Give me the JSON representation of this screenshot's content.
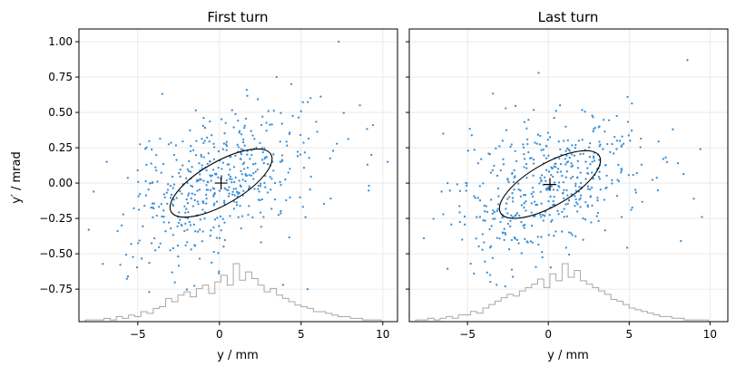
{
  "chart_data": {
    "type": "scatter",
    "ylabel": "y′ / mrad",
    "grid": true,
    "sharey": true,
    "ylim": [
      -0.98,
      1.09
    ],
    "yticks": [
      -0.75,
      -0.5,
      -0.25,
      0.0,
      0.25,
      0.5,
      0.75,
      1.0
    ],
    "ytick_labels": [
      "−0.75",
      "−0.50",
      "−0.25",
      "0.00",
      "0.25",
      "0.50",
      "0.75",
      "1.00"
    ],
    "colors": {
      "points": "#3a8fd6",
      "ellipse": "#000000",
      "histogram": "#a8a8a8",
      "grid": "#e6e6e6"
    },
    "panels": [
      {
        "title": "First turn",
        "xlabel": "y / mm",
        "xlim": [
          -8.6,
          10.9
        ],
        "xticks": [
          -5,
          0,
          5,
          10
        ],
        "xtick_labels": [
          "−5",
          "0",
          "5",
          "10"
        ],
        "center": {
          "x": 0.1,
          "y": 0.0
        },
        "ellipse": {
          "cx": 0.1,
          "cy": 0.0,
          "rx": 3.6,
          "ry": 0.22,
          "angle_deg": 30
        },
        "seed": 7,
        "point_count": 480,
        "points": [
          {
            "x": 7.3,
            "y": 1.0
          },
          {
            "x": 3.5,
            "y": 0.75
          },
          {
            "x": 4.4,
            "y": 0.7
          },
          {
            "x": -3.5,
            "y": 0.63
          },
          {
            "x": 8.6,
            "y": 0.55
          },
          {
            "x": 9.4,
            "y": 0.41
          },
          {
            "x": 9.3,
            "y": 0.2
          },
          {
            "x": 10.3,
            "y": 0.15
          },
          {
            "x": -7.7,
            "y": -0.06
          },
          {
            "x": -8.0,
            "y": -0.33
          },
          {
            "x": -5.6,
            "y": -0.66
          },
          {
            "x": -4.3,
            "y": -0.77
          },
          {
            "x": 5.4,
            "y": -0.75
          },
          {
            "x": 3.9,
            "y": -0.72
          },
          {
            "x": -6.9,
            "y": 0.15
          }
        ],
        "histogram": [
          1,
          1,
          1,
          2,
          1,
          3,
          2,
          4,
          3,
          6,
          5,
          8,
          9,
          14,
          12,
          16,
          18,
          15,
          20,
          22,
          17,
          24,
          28,
          22,
          35,
          25,
          30,
          26,
          22,
          18,
          20,
          16,
          14,
          12,
          10,
          9,
          8,
          6,
          6,
          5,
          4,
          3,
          3,
          2,
          2,
          1,
          1,
          1
        ]
      },
      {
        "title": "Last turn",
        "xlabel": "y / mm",
        "xlim": [
          -8.6,
          11.1
        ],
        "xticks": [
          -5,
          0,
          5,
          10
        ],
        "xtick_labels": [
          "−5",
          "0",
          "5",
          "10"
        ],
        "center": {
          "x": 0.1,
          "y": -0.01
        },
        "ellipse": {
          "cx": 0.1,
          "cy": -0.01,
          "rx": 3.6,
          "ry": 0.22,
          "angle_deg": 30
        },
        "seed": 19,
        "point_count": 470,
        "points": [
          {
            "x": 8.6,
            "y": 0.87
          },
          {
            "x": -0.6,
            "y": 0.78
          },
          {
            "x": 4.9,
            "y": 0.61
          },
          {
            "x": 7.7,
            "y": 0.38
          },
          {
            "x": 9.4,
            "y": 0.24
          },
          {
            "x": 9.5,
            "y": -0.24
          },
          {
            "x": 9.0,
            "y": -0.11
          },
          {
            "x": -7.7,
            "y": -0.39
          },
          {
            "x": -6.6,
            "y": -0.06
          },
          {
            "x": -4.8,
            "y": -0.57
          },
          {
            "x": -4.6,
            "y": -0.64
          },
          {
            "x": -3.6,
            "y": -0.65
          },
          {
            "x": 8.2,
            "y": -0.41
          },
          {
            "x": -3.2,
            "y": -0.72
          },
          {
            "x": -6.5,
            "y": 0.35
          }
        ],
        "histogram": [
          1,
          1,
          2,
          1,
          2,
          3,
          2,
          4,
          4,
          6,
          5,
          8,
          10,
          12,
          14,
          16,
          15,
          18,
          20,
          22,
          25,
          20,
          28,
          24,
          34,
          26,
          30,
          24,
          22,
          20,
          18,
          16,
          13,
          12,
          10,
          8,
          7,
          6,
          5,
          4,
          3,
          3,
          2,
          2,
          1,
          1,
          1,
          1
        ]
      }
    ]
  }
}
